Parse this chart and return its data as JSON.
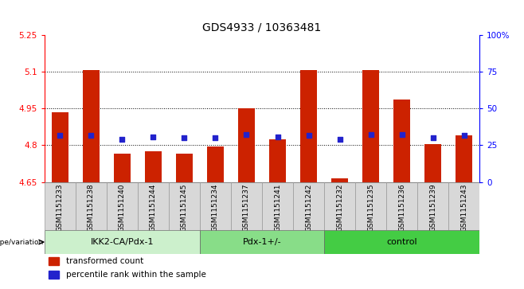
{
  "title": "GDS4933 / 10363481",
  "samples": [
    "GSM1151233",
    "GSM1151238",
    "GSM1151240",
    "GSM1151244",
    "GSM1151245",
    "GSM1151234",
    "GSM1151237",
    "GSM1151241",
    "GSM1151242",
    "GSM1151232",
    "GSM1151235",
    "GSM1151236",
    "GSM1151239",
    "GSM1151243"
  ],
  "bar_values": [
    4.935,
    5.105,
    4.765,
    4.775,
    4.765,
    4.795,
    4.95,
    4.825,
    5.105,
    4.665,
    5.105,
    4.985,
    4.805,
    4.84
  ],
  "blue_dot_values": [
    4.84,
    4.84,
    4.825,
    4.835,
    4.83,
    4.83,
    4.845,
    4.835,
    4.84,
    4.825,
    4.845,
    4.845,
    4.83,
    4.84
  ],
  "groups": [
    {
      "label": "IKK2-CA/Pdx-1",
      "start": 0,
      "end": 5
    },
    {
      "label": "Pdx-1+/-",
      "start": 5,
      "end": 9
    },
    {
      "label": "control",
      "start": 9,
      "end": 14
    }
  ],
  "group_colors": [
    "#ccf0cc",
    "#88dd88",
    "#44cc44"
  ],
  "ylim_left": [
    4.65,
    5.25
  ],
  "ylim_right": [
    0,
    100
  ],
  "yticks_left": [
    4.65,
    4.8,
    4.95,
    5.1,
    5.25
  ],
  "yticks_right": [
    0,
    25,
    50,
    75,
    100
  ],
  "ytick_labels_left": [
    "4.65",
    "4.8",
    "4.95",
    "5.1",
    "5.25"
  ],
  "ytick_labels_right": [
    "0",
    "25",
    "50",
    "75",
    "100%"
  ],
  "bar_color": "#cc2200",
  "dot_color": "#2222cc",
  "bar_bottom": 4.65,
  "legend_items": [
    "transformed count",
    "percentile rank within the sample"
  ],
  "xlabel_text": "genotype/variation",
  "title_fontsize": 10,
  "tick_fontsize": 7.5,
  "sample_fontsize": 6.5,
  "group_fontsize": 8,
  "legend_fontsize": 7.5
}
